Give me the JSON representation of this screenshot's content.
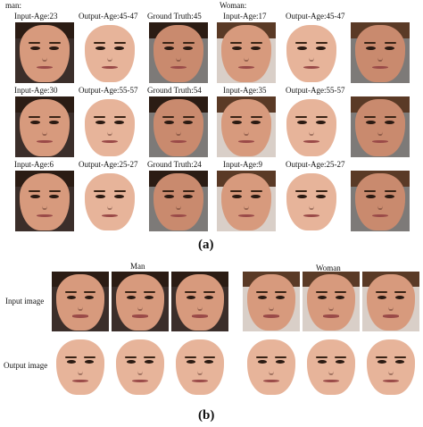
{
  "panel_a": {
    "man_label": "man:",
    "woman_label": "Woman:",
    "caption": "(a)",
    "rows": [
      {
        "man": [
          "Input-Age:23",
          "Output-Age:45-47",
          "Ground Truth:45"
        ],
        "woman": [
          "Input-Age:17",
          "Output-Age:45-47",
          ""
        ]
      },
      {
        "man": [
          "Input-Age:30",
          "Output-Age:55-57",
          "Ground Truth:54"
        ],
        "woman": [
          "Input-Age:35",
          "Output-Age:55-57",
          ""
        ]
      },
      {
        "man": [
          "Input-Age:6",
          "Output-Age:25-27",
          "Ground Truth:24"
        ],
        "woman": [
          "Input-Age:9",
          "Output-Age:25-27",
          ""
        ]
      }
    ]
  },
  "panel_b": {
    "man_title": "Man",
    "woman_title": "Woman",
    "input_label": "Input image",
    "output_label": "Output image",
    "caption": "(b)"
  },
  "palette": {
    "bg_dark": "#3b2e2a",
    "bg_gray": "#7d7a78",
    "bg_light": "#d9cfc8",
    "skin_a": "#d79a7d",
    "skin_b": "#e7b49a",
    "skin_c": "#c98a6e",
    "hair_dark": "#2b1c14",
    "hair_brown": "#5a3a26"
  }
}
